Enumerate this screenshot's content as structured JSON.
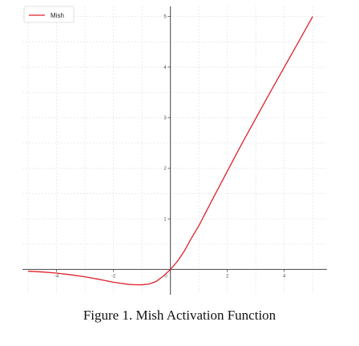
{
  "figure": {
    "caption": "Figure 1.  Mish Activation Function"
  },
  "chart_data": {
    "type": "line",
    "title": "",
    "xlabel": "",
    "ylabel": "",
    "xlim": [
      -5.2,
      5.5
    ],
    "ylim": [
      -0.5,
      5.2
    ],
    "xticks": [
      -4,
      -2,
      0,
      2,
      4
    ],
    "yticks": [
      1,
      2,
      3,
      4,
      5
    ],
    "xtick_labels": [
      "-4",
      "-2",
      "0",
      "2",
      "4"
    ],
    "ytick_labels": [
      "1",
      "2",
      "3",
      "4",
      "5"
    ],
    "grid": true,
    "legend": {
      "position": "top-left",
      "entries": [
        "Mish"
      ]
    },
    "series": [
      {
        "name": "Mish",
        "color": "#e0202a",
        "x": [
          -5.0,
          -4.5,
          -4.0,
          -3.5,
          -3.0,
          -2.5,
          -2.0,
          -1.5,
          -1.25,
          -1.0,
          -0.75,
          -0.5,
          -0.25,
          0.0,
          0.25,
          0.5,
          0.75,
          1.0,
          1.5,
          2.0,
          2.5,
          3.0,
          3.5,
          4.0,
          4.5,
          5.0
        ],
        "y": [
          -0.034,
          -0.05,
          -0.073,
          -0.105,
          -0.146,
          -0.196,
          -0.252,
          -0.293,
          -0.302,
          -0.303,
          -0.288,
          -0.236,
          -0.132,
          0.0,
          0.163,
          0.375,
          0.629,
          0.865,
          1.409,
          1.944,
          2.476,
          2.987,
          3.496,
          3.998,
          4.499,
          5.0
        ]
      }
    ]
  }
}
